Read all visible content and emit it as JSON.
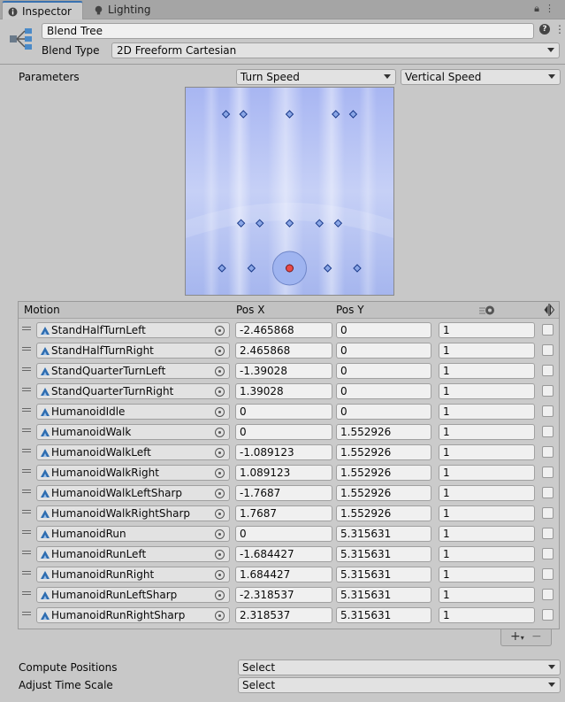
{
  "tabs": [
    {
      "label": "Inspector",
      "icon": "info-icon",
      "active": true
    },
    {
      "label": "Lighting",
      "icon": "bulb-icon",
      "active": false
    }
  ],
  "header": {
    "name": "Blend Tree",
    "blend_type_label": "Blend Type",
    "blend_type_value": "2D Freeform Cartesian"
  },
  "parameters": {
    "label": "Parameters",
    "x_param": "Turn Speed",
    "y_param": "Vertical Speed"
  },
  "columns": {
    "motion": "Motion",
    "pos_x": "Pos X",
    "pos_y": "Pos Y",
    "speed_icon": "speed-icon",
    "mirror_icon": "mirror-icon"
  },
  "motions": [
    {
      "name": "StandHalfTurnLeft",
      "x": "-2.465868",
      "y": "0",
      "speed": "1"
    },
    {
      "name": "StandHalfTurnRight",
      "x": "2.465868",
      "y": "0",
      "speed": "1"
    },
    {
      "name": "StandQuarterTurnLeft",
      "x": "-1.39028",
      "y": "0",
      "speed": "1"
    },
    {
      "name": "StandQuarterTurnRight",
      "x": "1.39028",
      "y": "0",
      "speed": "1"
    },
    {
      "name": "HumanoidIdle",
      "x": "0",
      "y": "0",
      "speed": "1"
    },
    {
      "name": "HumanoidWalk",
      "x": "0",
      "y": "1.552926",
      "speed": "1"
    },
    {
      "name": "HumanoidWalkLeft",
      "x": "-1.089123",
      "y": "1.552926",
      "speed": "1"
    },
    {
      "name": "HumanoidWalkRight",
      "x": "1.089123",
      "y": "1.552926",
      "speed": "1"
    },
    {
      "name": "HumanoidWalkLeftSharp",
      "x": "-1.7687",
      "y": "1.552926",
      "speed": "1"
    },
    {
      "name": "HumanoidWalkRightSharp",
      "x": "1.7687",
      "y": "1.552926",
      "speed": "1"
    },
    {
      "name": "HumanoidRun",
      "x": "0",
      "y": "5.315631",
      "speed": "1"
    },
    {
      "name": "HumanoidRunLeft",
      "x": "-1.684427",
      "y": "5.315631",
      "speed": "1"
    },
    {
      "name": "HumanoidRunRight",
      "x": "1.684427",
      "y": "5.315631",
      "speed": "1"
    },
    {
      "name": "HumanoidRunLeftSharp",
      "x": "-2.318537",
      "y": "5.315631",
      "speed": "1"
    },
    {
      "name": "HumanoidRunRightSharp",
      "x": "2.318537",
      "y": "5.315631",
      "speed": "1"
    }
  ],
  "footer": {
    "compute_positions_label": "Compute Positions",
    "compute_positions_value": "Select",
    "adjust_time_scale_label": "Adjust Time Scale",
    "adjust_time_scale_value": "Select"
  },
  "colors": {
    "graph_bg": "#a3b3f0",
    "point_fill": "#8aa6e6",
    "point_stroke": "#1a3a8a",
    "current_point": "#e84a4a",
    "active_tab_accent": "#3a72b0"
  }
}
